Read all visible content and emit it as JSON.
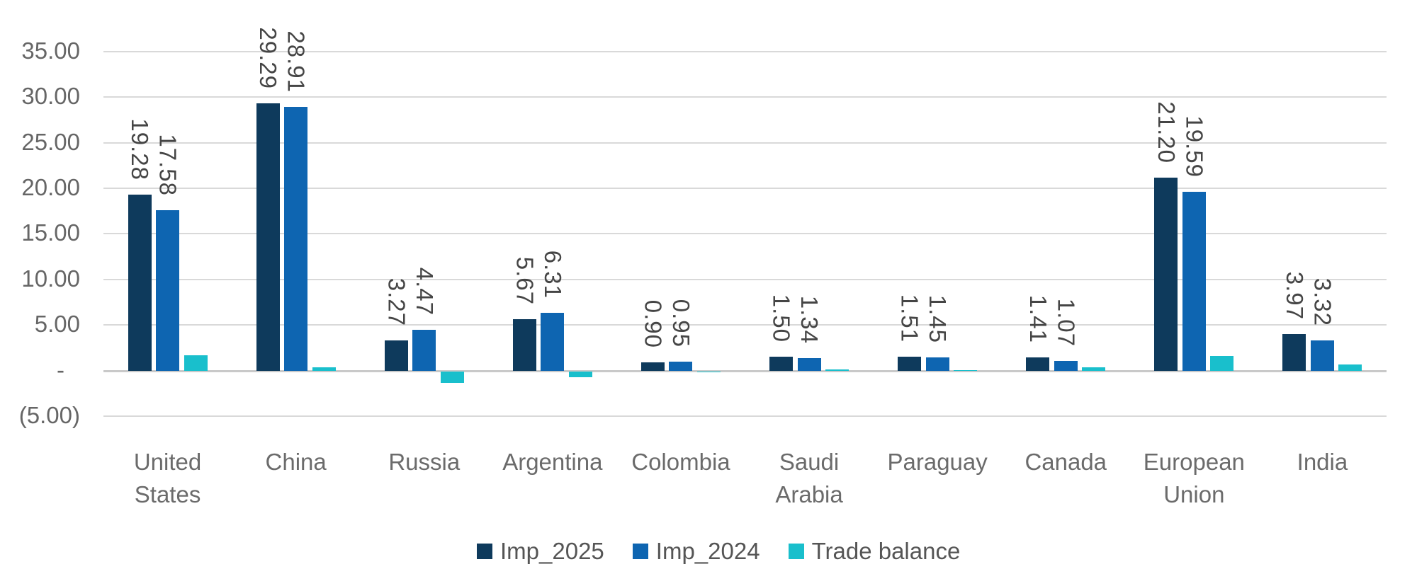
{
  "chart_data": {
    "type": "bar",
    "title": "",
    "xlabel": "",
    "ylabel": "",
    "categories": [
      "United States",
      "China",
      "Russia",
      "Argentina",
      "Colombia",
      "Saudi Arabia",
      "Paraguay",
      "Canada",
      "European Union",
      "India"
    ],
    "series": [
      {
        "name": "Imp_2025",
        "color": "#0E3A5C",
        "values": [
          19.28,
          29.29,
          3.27,
          5.67,
          0.9,
          1.5,
          1.51,
          1.41,
          21.2,
          3.97
        ],
        "labels": [
          "19.28",
          "29.29",
          "3.27",
          "5.67",
          "0.90",
          "1.50",
          "1.51",
          "1.41",
          "21.20",
          "3.97"
        ]
      },
      {
        "name": "Imp_2024",
        "color": "#0E65B1",
        "values": [
          17.58,
          28.91,
          4.47,
          6.31,
          0.95,
          1.34,
          1.45,
          1.07,
          19.59,
          3.32
        ],
        "labels": [
          "17.58",
          "28.91",
          "4.47",
          "6.31",
          "0.95",
          "1.34",
          "1.45",
          "1.07",
          "19.59",
          "3.32"
        ]
      },
      {
        "name": "Trade balance",
        "color": "#19BFCC",
        "values": [
          1.7,
          0.38,
          -1.2,
          -0.64,
          -0.05,
          0.16,
          0.06,
          0.34,
          1.61,
          0.65
        ],
        "labels": null
      }
    ],
    "y_axis": {
      "min": -5,
      "max": 35,
      "tick_step": 5,
      "values": [
        35,
        30,
        25,
        20,
        15,
        10,
        5,
        0,
        -5
      ],
      "labels": [
        "35.00",
        "30.00",
        "25.00",
        "20.00",
        "15.00",
        "10.00",
        "5.00",
        "-",
        "(5.00)"
      ]
    },
    "grid": true,
    "data_labels_rotated": "90deg-clockwise",
    "legend": {
      "position": "bottom",
      "entries": [
        "Imp_2025",
        "Imp_2024",
        "Trade balance"
      ]
    }
  },
  "colors": {
    "background": "#FFFFFF",
    "gridline": "#D9D9D9",
    "zero_line": "#C9C9C9",
    "axis_text": "#666666",
    "category_text": "#6b6b6b",
    "value_label_text": "#454545",
    "legend_text": "#555555"
  }
}
